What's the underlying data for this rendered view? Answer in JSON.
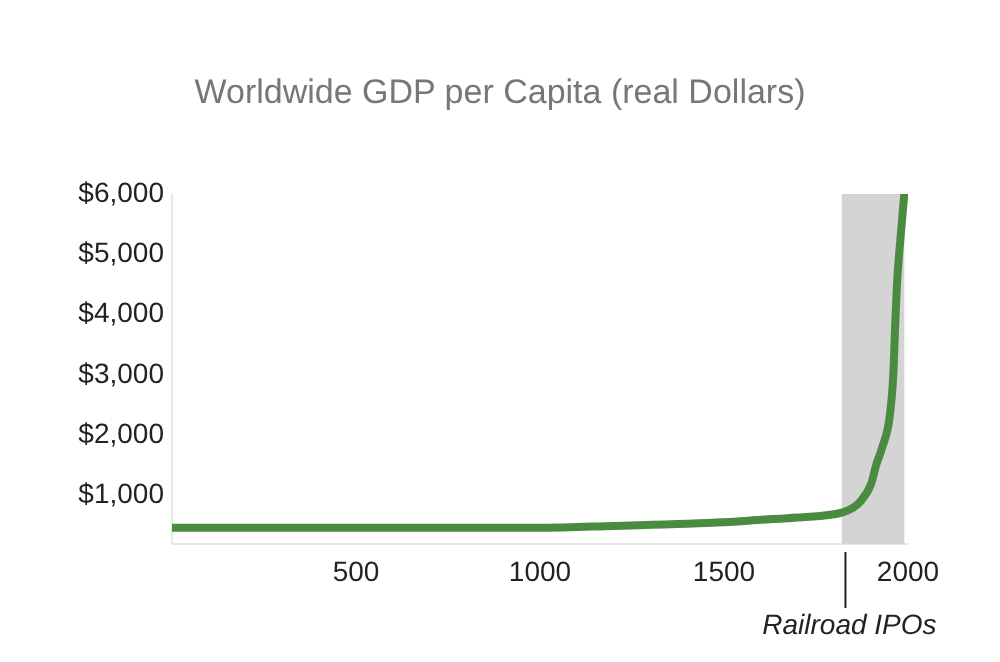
{
  "chart_data": {
    "type": "line",
    "title": "Worldwide GDP per Capita (real Dollars)",
    "x": [
      0,
      500,
      1000,
      1200,
      1500,
      1600,
      1700,
      1820,
      1850,
      1870,
      1900,
      1913,
      1930,
      1950,
      1960,
      1965,
      1970,
      1980,
      1990
    ],
    "series": [
      {
        "color": "#4a8c3f",
        "values": [
          470,
          470,
          470,
          500,
          560,
          600,
          640,
          720,
          800,
          900,
          1200,
          1500,
          1800,
          2300,
          3000,
          3800,
          4500,
          5300,
          6000
        ]
      }
    ],
    "xlim": [
      0,
      2000
    ],
    "xticks": [
      500,
      1000,
      1500,
      2000
    ],
    "ylim": [
      200,
      6000
    ],
    "yticks": [
      {
        "value": 1000,
        "label": "$1,000"
      },
      {
        "value": 2000,
        "label": "$2,000"
      },
      {
        "value": 3000,
        "label": "$3,000"
      },
      {
        "value": 4000,
        "label": "$4,000"
      },
      {
        "value": 5000,
        "label": "$5,000"
      },
      {
        "value": 6000,
        "label": "$6,000"
      }
    ],
    "bands": [
      {
        "axis": "x",
        "from": 1820,
        "to": 1990,
        "color": "#d4d4d4"
      }
    ],
    "annotations": [
      {
        "text": "Railroad IPOs",
        "x": 1830
      }
    ],
    "grid": false,
    "legend": false,
    "marker": "none",
    "line_style": "solid"
  }
}
